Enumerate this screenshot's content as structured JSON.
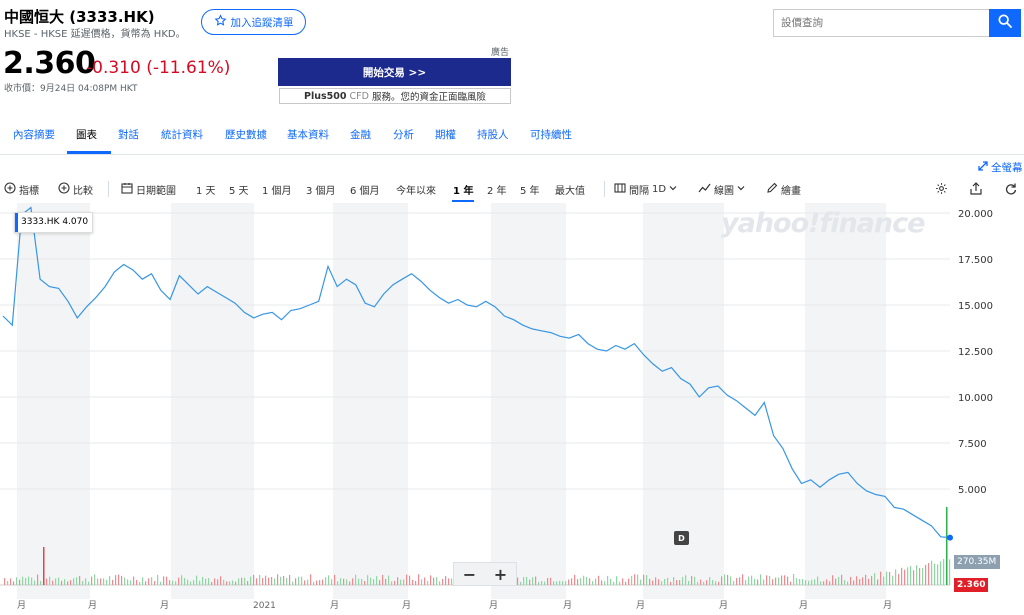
{
  "header": {
    "title": "中國恒大 (3333.HK)",
    "subtitle": "HKSE - HKSE 延遲價格，貨幣為 HKD。",
    "watchlist_label": "加入追蹤清單",
    "price": "2.360",
    "change": "-0.310 (-11.61%)",
    "close_time": "收市價：9月24日 04:08PM HKT"
  },
  "ad": {
    "label": "廣告",
    "trade_button": "開始交易 >>",
    "text_bold": "Plus500",
    "text_cfd": "CFD",
    "text_rest": "服務。您的資金正面臨風險"
  },
  "search": {
    "placeholder": "設價查詢"
  },
  "nav": {
    "items": [
      "內容摘要",
      "圖表",
      "對話",
      "統計資料",
      "歷史數據",
      "基本資料",
      "金融",
      "分析",
      "期權",
      "持股人",
      "可持續性"
    ],
    "active": "圖表"
  },
  "toolbar": {
    "fullscreen": "全螢幕",
    "indicators": "指標",
    "compare": "比較",
    "date_range": "日期範圍",
    "ranges": [
      "1 天",
      "5 天",
      "1 個月",
      "3 個月",
      "6 個月",
      "今年以來",
      "1 年",
      "2 年",
      "5 年",
      "最大值"
    ],
    "active_range": "1 年",
    "interval_label": "間隔",
    "interval_value": "1D",
    "line_label": "線圖",
    "draw_label": "繪畫"
  },
  "chart_data": {
    "type": "line",
    "symbol": "3333.HK",
    "tooltip_value": "4.070",
    "watermark": "yahoo!finance",
    "y_ticks": [
      "20.000",
      "17.500",
      "15.000",
      "12.500",
      "10.000",
      "7.500",
      "5.000"
    ],
    "ylim": [
      0,
      20
    ],
    "x_labels": [
      "月",
      "月",
      "月",
      "2021",
      "月",
      "月",
      "月",
      "月",
      "月",
      "月",
      "月",
      "月"
    ],
    "last_price": "2.360",
    "volume_label": "270.35M",
    "event_marker": "D",
    "line_color": "#3796e5",
    "series": [
      {
        "values": [
          14.4,
          13.9,
          19.9,
          20.3,
          16.4,
          16.0,
          15.9,
          15.2,
          14.3,
          14.9,
          15.4,
          16.0,
          16.8,
          17.2,
          16.9,
          16.4,
          16.7,
          15.8,
          15.3,
          16.6,
          16.1,
          15.6,
          16.0,
          15.7,
          15.4,
          15.1,
          14.6,
          14.3,
          14.5,
          14.6,
          14.2,
          14.7,
          14.8,
          15.0,
          15.2,
          17.1,
          16.0,
          16.4,
          16.1,
          15.1,
          14.9,
          15.6,
          16.1,
          16.4,
          16.7,
          16.3,
          15.8,
          15.4,
          15.1,
          15.3,
          15.0,
          14.9,
          15.2,
          14.9,
          14.4,
          14.2,
          13.9,
          13.7,
          13.6,
          13.5,
          13.3,
          13.2,
          13.4,
          12.9,
          12.6,
          12.5,
          12.8,
          12.6,
          12.9,
          12.3,
          11.8,
          11.4,
          11.6,
          11.0,
          10.7,
          10.0,
          10.5,
          10.6,
          10.1,
          9.8,
          9.4,
          9.0,
          9.7,
          7.9,
          7.2,
          6.1,
          5.3,
          5.5,
          5.1,
          5.5,
          5.8,
          5.9,
          5.3,
          4.9,
          4.7,
          4.6,
          4.0,
          3.9,
          3.6,
          3.3,
          3.0,
          2.4,
          2.36
        ]
      }
    ]
  }
}
